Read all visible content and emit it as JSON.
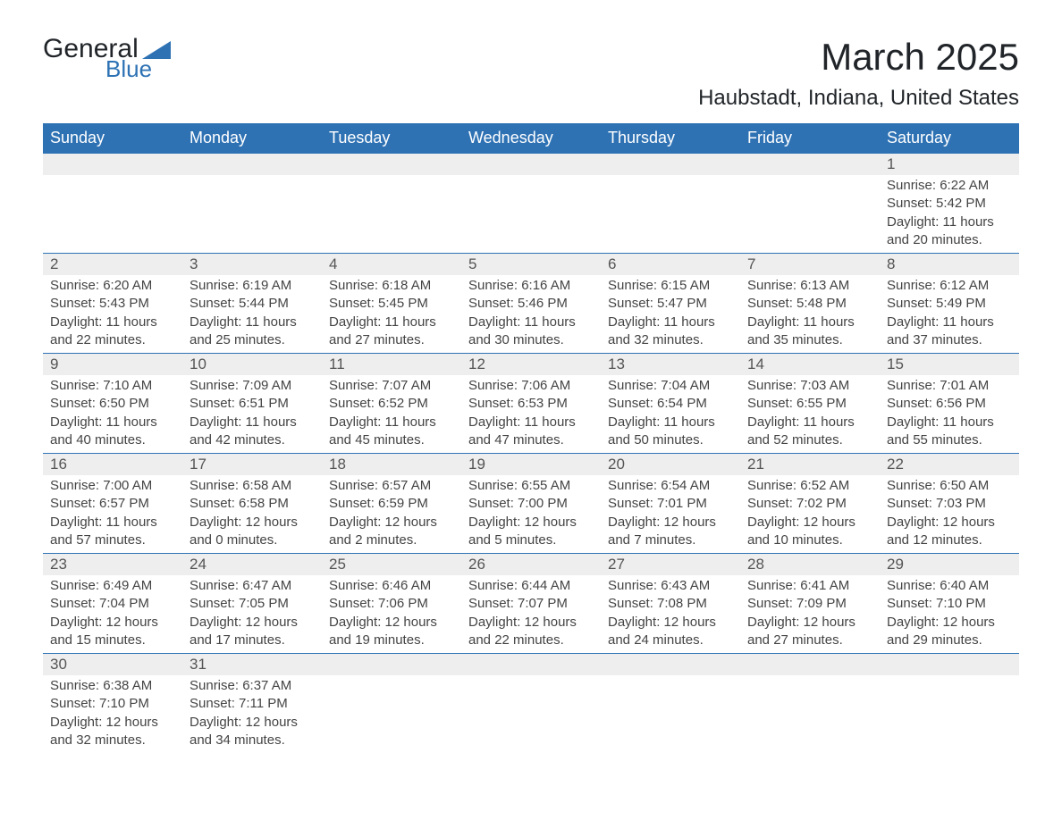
{
  "logo": {
    "text1": "General",
    "text2": "Blue"
  },
  "title": "March 2025",
  "location": "Haubstadt, Indiana, United States",
  "colors": {
    "header_bg": "#2e72b4",
    "header_text": "#ffffff",
    "daynum_bg": "#eeeeee",
    "rule": "#2e72b4",
    "body_text": "#444444"
  },
  "weekdays": [
    "Sunday",
    "Monday",
    "Tuesday",
    "Wednesday",
    "Thursday",
    "Friday",
    "Saturday"
  ],
  "weeks": [
    [
      null,
      null,
      null,
      null,
      null,
      null,
      {
        "n": "1",
        "sr": "Sunrise: 6:22 AM",
        "ss": "Sunset: 5:42 PM",
        "d1": "Daylight: 11 hours",
        "d2": "and 20 minutes."
      }
    ],
    [
      {
        "n": "2",
        "sr": "Sunrise: 6:20 AM",
        "ss": "Sunset: 5:43 PM",
        "d1": "Daylight: 11 hours",
        "d2": "and 22 minutes."
      },
      {
        "n": "3",
        "sr": "Sunrise: 6:19 AM",
        "ss": "Sunset: 5:44 PM",
        "d1": "Daylight: 11 hours",
        "d2": "and 25 minutes."
      },
      {
        "n": "4",
        "sr": "Sunrise: 6:18 AM",
        "ss": "Sunset: 5:45 PM",
        "d1": "Daylight: 11 hours",
        "d2": "and 27 minutes."
      },
      {
        "n": "5",
        "sr": "Sunrise: 6:16 AM",
        "ss": "Sunset: 5:46 PM",
        "d1": "Daylight: 11 hours",
        "d2": "and 30 minutes."
      },
      {
        "n": "6",
        "sr": "Sunrise: 6:15 AM",
        "ss": "Sunset: 5:47 PM",
        "d1": "Daylight: 11 hours",
        "d2": "and 32 minutes."
      },
      {
        "n": "7",
        "sr": "Sunrise: 6:13 AM",
        "ss": "Sunset: 5:48 PM",
        "d1": "Daylight: 11 hours",
        "d2": "and 35 minutes."
      },
      {
        "n": "8",
        "sr": "Sunrise: 6:12 AM",
        "ss": "Sunset: 5:49 PM",
        "d1": "Daylight: 11 hours",
        "d2": "and 37 minutes."
      }
    ],
    [
      {
        "n": "9",
        "sr": "Sunrise: 7:10 AM",
        "ss": "Sunset: 6:50 PM",
        "d1": "Daylight: 11 hours",
        "d2": "and 40 minutes."
      },
      {
        "n": "10",
        "sr": "Sunrise: 7:09 AM",
        "ss": "Sunset: 6:51 PM",
        "d1": "Daylight: 11 hours",
        "d2": "and 42 minutes."
      },
      {
        "n": "11",
        "sr": "Sunrise: 7:07 AM",
        "ss": "Sunset: 6:52 PM",
        "d1": "Daylight: 11 hours",
        "d2": "and 45 minutes."
      },
      {
        "n": "12",
        "sr": "Sunrise: 7:06 AM",
        "ss": "Sunset: 6:53 PM",
        "d1": "Daylight: 11 hours",
        "d2": "and 47 minutes."
      },
      {
        "n": "13",
        "sr": "Sunrise: 7:04 AM",
        "ss": "Sunset: 6:54 PM",
        "d1": "Daylight: 11 hours",
        "d2": "and 50 minutes."
      },
      {
        "n": "14",
        "sr": "Sunrise: 7:03 AM",
        "ss": "Sunset: 6:55 PM",
        "d1": "Daylight: 11 hours",
        "d2": "and 52 minutes."
      },
      {
        "n": "15",
        "sr": "Sunrise: 7:01 AM",
        "ss": "Sunset: 6:56 PM",
        "d1": "Daylight: 11 hours",
        "d2": "and 55 minutes."
      }
    ],
    [
      {
        "n": "16",
        "sr": "Sunrise: 7:00 AM",
        "ss": "Sunset: 6:57 PM",
        "d1": "Daylight: 11 hours",
        "d2": "and 57 minutes."
      },
      {
        "n": "17",
        "sr": "Sunrise: 6:58 AM",
        "ss": "Sunset: 6:58 PM",
        "d1": "Daylight: 12 hours",
        "d2": "and 0 minutes."
      },
      {
        "n": "18",
        "sr": "Sunrise: 6:57 AM",
        "ss": "Sunset: 6:59 PM",
        "d1": "Daylight: 12 hours",
        "d2": "and 2 minutes."
      },
      {
        "n": "19",
        "sr": "Sunrise: 6:55 AM",
        "ss": "Sunset: 7:00 PM",
        "d1": "Daylight: 12 hours",
        "d2": "and 5 minutes."
      },
      {
        "n": "20",
        "sr": "Sunrise: 6:54 AM",
        "ss": "Sunset: 7:01 PM",
        "d1": "Daylight: 12 hours",
        "d2": "and 7 minutes."
      },
      {
        "n": "21",
        "sr": "Sunrise: 6:52 AM",
        "ss": "Sunset: 7:02 PM",
        "d1": "Daylight: 12 hours",
        "d2": "and 10 minutes."
      },
      {
        "n": "22",
        "sr": "Sunrise: 6:50 AM",
        "ss": "Sunset: 7:03 PM",
        "d1": "Daylight: 12 hours",
        "d2": "and 12 minutes."
      }
    ],
    [
      {
        "n": "23",
        "sr": "Sunrise: 6:49 AM",
        "ss": "Sunset: 7:04 PM",
        "d1": "Daylight: 12 hours",
        "d2": "and 15 minutes."
      },
      {
        "n": "24",
        "sr": "Sunrise: 6:47 AM",
        "ss": "Sunset: 7:05 PM",
        "d1": "Daylight: 12 hours",
        "d2": "and 17 minutes."
      },
      {
        "n": "25",
        "sr": "Sunrise: 6:46 AM",
        "ss": "Sunset: 7:06 PM",
        "d1": "Daylight: 12 hours",
        "d2": "and 19 minutes."
      },
      {
        "n": "26",
        "sr": "Sunrise: 6:44 AM",
        "ss": "Sunset: 7:07 PM",
        "d1": "Daylight: 12 hours",
        "d2": "and 22 minutes."
      },
      {
        "n": "27",
        "sr": "Sunrise: 6:43 AM",
        "ss": "Sunset: 7:08 PM",
        "d1": "Daylight: 12 hours",
        "d2": "and 24 minutes."
      },
      {
        "n": "28",
        "sr": "Sunrise: 6:41 AM",
        "ss": "Sunset: 7:09 PM",
        "d1": "Daylight: 12 hours",
        "d2": "and 27 minutes."
      },
      {
        "n": "29",
        "sr": "Sunrise: 6:40 AM",
        "ss": "Sunset: 7:10 PM",
        "d1": "Daylight: 12 hours",
        "d2": "and 29 minutes."
      }
    ],
    [
      {
        "n": "30",
        "sr": "Sunrise: 6:38 AM",
        "ss": "Sunset: 7:10 PM",
        "d1": "Daylight: 12 hours",
        "d2": "and 32 minutes."
      },
      {
        "n": "31",
        "sr": "Sunrise: 6:37 AM",
        "ss": "Sunset: 7:11 PM",
        "d1": "Daylight: 12 hours",
        "d2": "and 34 minutes."
      },
      null,
      null,
      null,
      null,
      null
    ]
  ]
}
